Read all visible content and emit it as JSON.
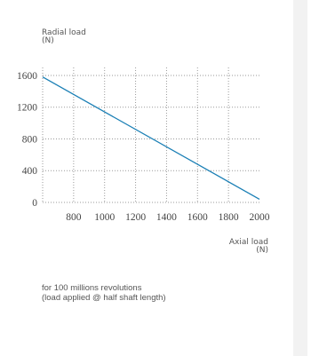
{
  "chart_data": {
    "type": "line",
    "ylabel": "Radial load",
    "ylabel_unit": "(N)",
    "xlabel": "Axial load",
    "xlabel_unit": "(N)",
    "x_ticks": [
      800,
      1000,
      1200,
      1400,
      1600,
      1800,
      2000
    ],
    "y_ticks": [
      0,
      400,
      800,
      1200,
      1600
    ],
    "xlim": [
      600,
      2000
    ],
    "ylim": [
      0,
      1700
    ],
    "grid": true,
    "line_color": "#1a7fb5",
    "series": [
      {
        "x": [
          600,
          2000
        ],
        "values": [
          1580,
          40
        ]
      }
    ]
  },
  "note": {
    "line1": "for 100 millions revolutions",
    "line2": "(load applied @ half shaft length)"
  }
}
